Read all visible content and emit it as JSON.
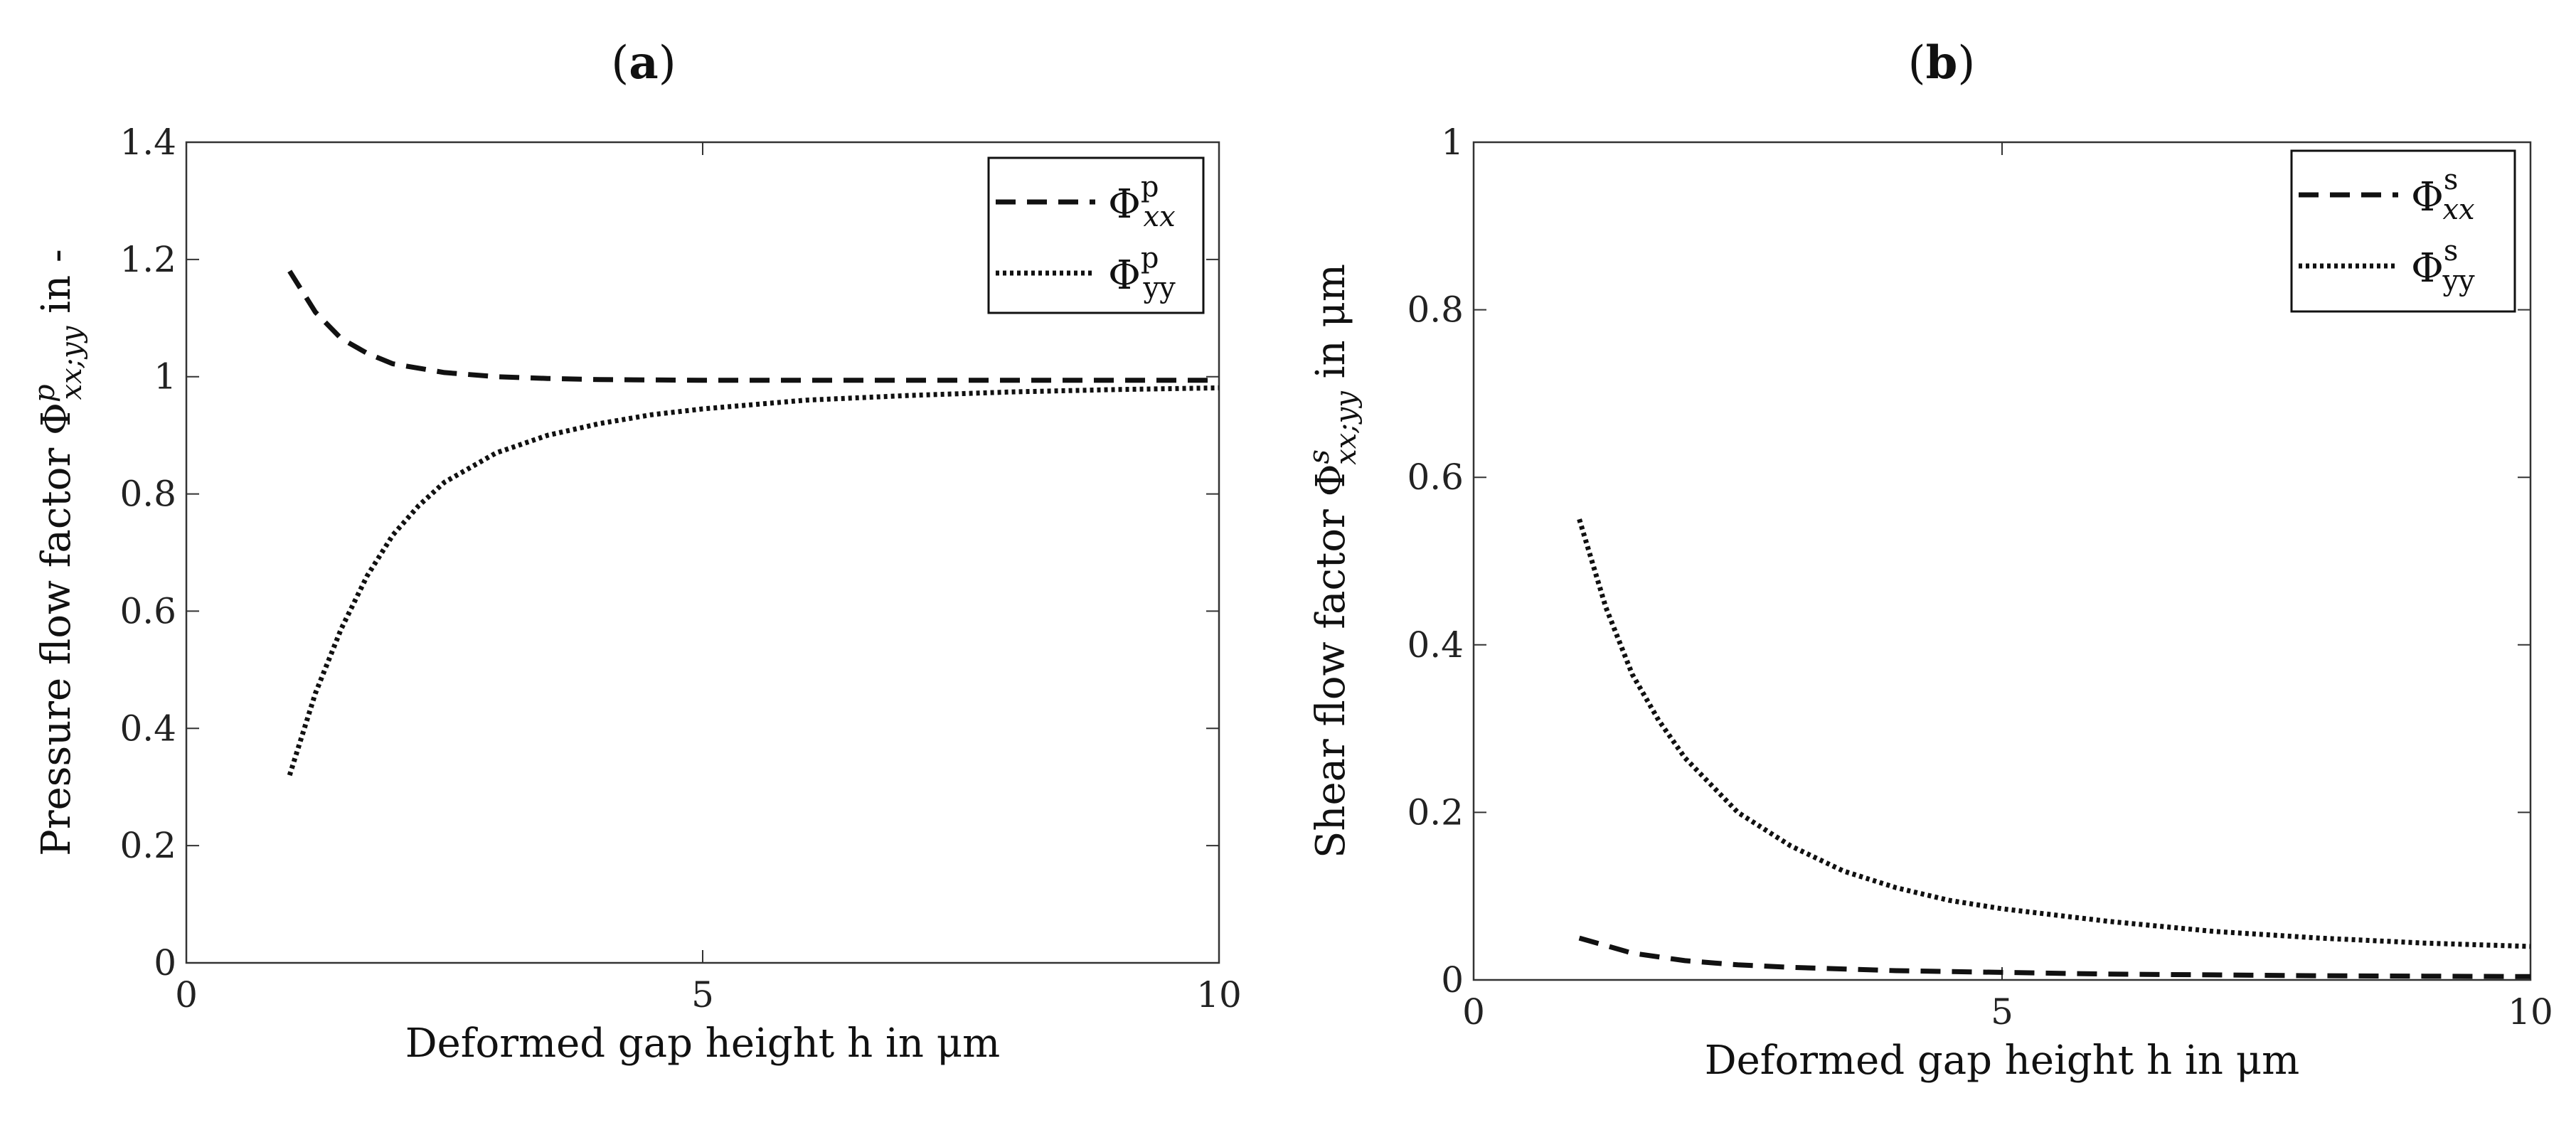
{
  "chart_data": [
    {
      "type": "line",
      "panel_label": "(a)",
      "panel_letter": "a",
      "xlabel": "Deformed gap height h in μm",
      "ylabel_prefix": "Pressure flow factor Φ",
      "ylabel_sup": "p",
      "ylabel_sub": "xx;yy",
      "ylabel_suffix": " in -",
      "xlim": [
        0,
        10
      ],
      "ylim": [
        0,
        1.4
      ],
      "xticks": [
        0,
        5,
        10
      ],
      "xtick_labels": [
        "0",
        "5",
        "10"
      ],
      "yticks": [
        0,
        0.2,
        0.4,
        0.6,
        0.8,
        1,
        1.2,
        1.4
      ],
      "ytick_labels": [
        "0",
        "0.2",
        "0.4",
        "0.6",
        "0.8",
        "1",
        "1.2",
        "1.4"
      ],
      "legend_position": "top-right",
      "series": [
        {
          "name": "Φxx p",
          "symbol": "Φ",
          "sup": "p",
          "sub": "xx",
          "sub_italic": true,
          "style": "dashed",
          "x": [
            1.0,
            1.25,
            1.5,
            1.75,
            2.0,
            2.5,
            3.0,
            3.5,
            4.0,
            5.0,
            6.0,
            7.0,
            8.0,
            9.0,
            10.0
          ],
          "y": [
            1.18,
            1.11,
            1.065,
            1.04,
            1.022,
            1.007,
            1.0,
            0.997,
            0.995,
            0.994,
            0.994,
            0.994,
            0.994,
            0.994,
            0.994
          ]
        },
        {
          "name": "Φyy p",
          "symbol": "Φ",
          "sup": "p",
          "sub": "yy",
          "sub_italic": false,
          "style": "dotted",
          "x": [
            1.0,
            1.25,
            1.5,
            1.75,
            2.0,
            2.25,
            2.5,
            3.0,
            3.5,
            4.0,
            4.5,
            5.0,
            6.0,
            7.0,
            8.0,
            9.0,
            10.0
          ],
          "y": [
            0.32,
            0.46,
            0.57,
            0.66,
            0.73,
            0.78,
            0.82,
            0.87,
            0.9,
            0.92,
            0.935,
            0.945,
            0.96,
            0.968,
            0.974,
            0.978,
            0.981
          ]
        }
      ]
    },
    {
      "type": "line",
      "panel_label": "(b)",
      "panel_letter": "b",
      "xlabel": "Deformed gap height h in μm",
      "ylabel_prefix": "Shear flow factor Φ",
      "ylabel_sup": "s",
      "ylabel_sub": "xx;yy",
      "ylabel_suffix": " in μm",
      "xlim": [
        0,
        10
      ],
      "ylim": [
        0,
        1
      ],
      "xticks": [
        0,
        5,
        10
      ],
      "xtick_labels": [
        "0",
        "5",
        "10"
      ],
      "yticks": [
        0,
        0.2,
        0.4,
        0.6,
        0.8,
        1
      ],
      "ytick_labels": [
        "0",
        "0.2",
        "0.4",
        "0.6",
        "0.8",
        "1"
      ],
      "legend_position": "top-right",
      "series": [
        {
          "name": "Φxx s",
          "symbol": "Φ",
          "sup": "s",
          "sub": "xx",
          "sub_italic": true,
          "style": "dashed",
          "x": [
            1.0,
            1.5,
            2.0,
            2.5,
            3.0,
            4.0,
            5.0,
            6.0,
            7.0,
            8.0,
            9.0,
            10.0
          ],
          "y": [
            0.05,
            0.032,
            0.023,
            0.018,
            0.015,
            0.011,
            0.009,
            0.007,
            0.006,
            0.005,
            0.0045,
            0.004
          ]
        },
        {
          "name": "Φyy s",
          "symbol": "Φ",
          "sup": "s",
          "sub": "yy",
          "sub_italic": false,
          "style": "dotted",
          "x": [
            1.0,
            1.25,
            1.5,
            1.75,
            2.0,
            2.5,
            3.0,
            3.5,
            4.0,
            4.5,
            5.0,
            6.0,
            7.0,
            8.0,
            9.0,
            10.0
          ],
          "y": [
            0.55,
            0.445,
            0.365,
            0.31,
            0.265,
            0.2,
            0.16,
            0.13,
            0.11,
            0.095,
            0.085,
            0.07,
            0.058,
            0.05,
            0.044,
            0.04
          ]
        }
      ]
    }
  ]
}
